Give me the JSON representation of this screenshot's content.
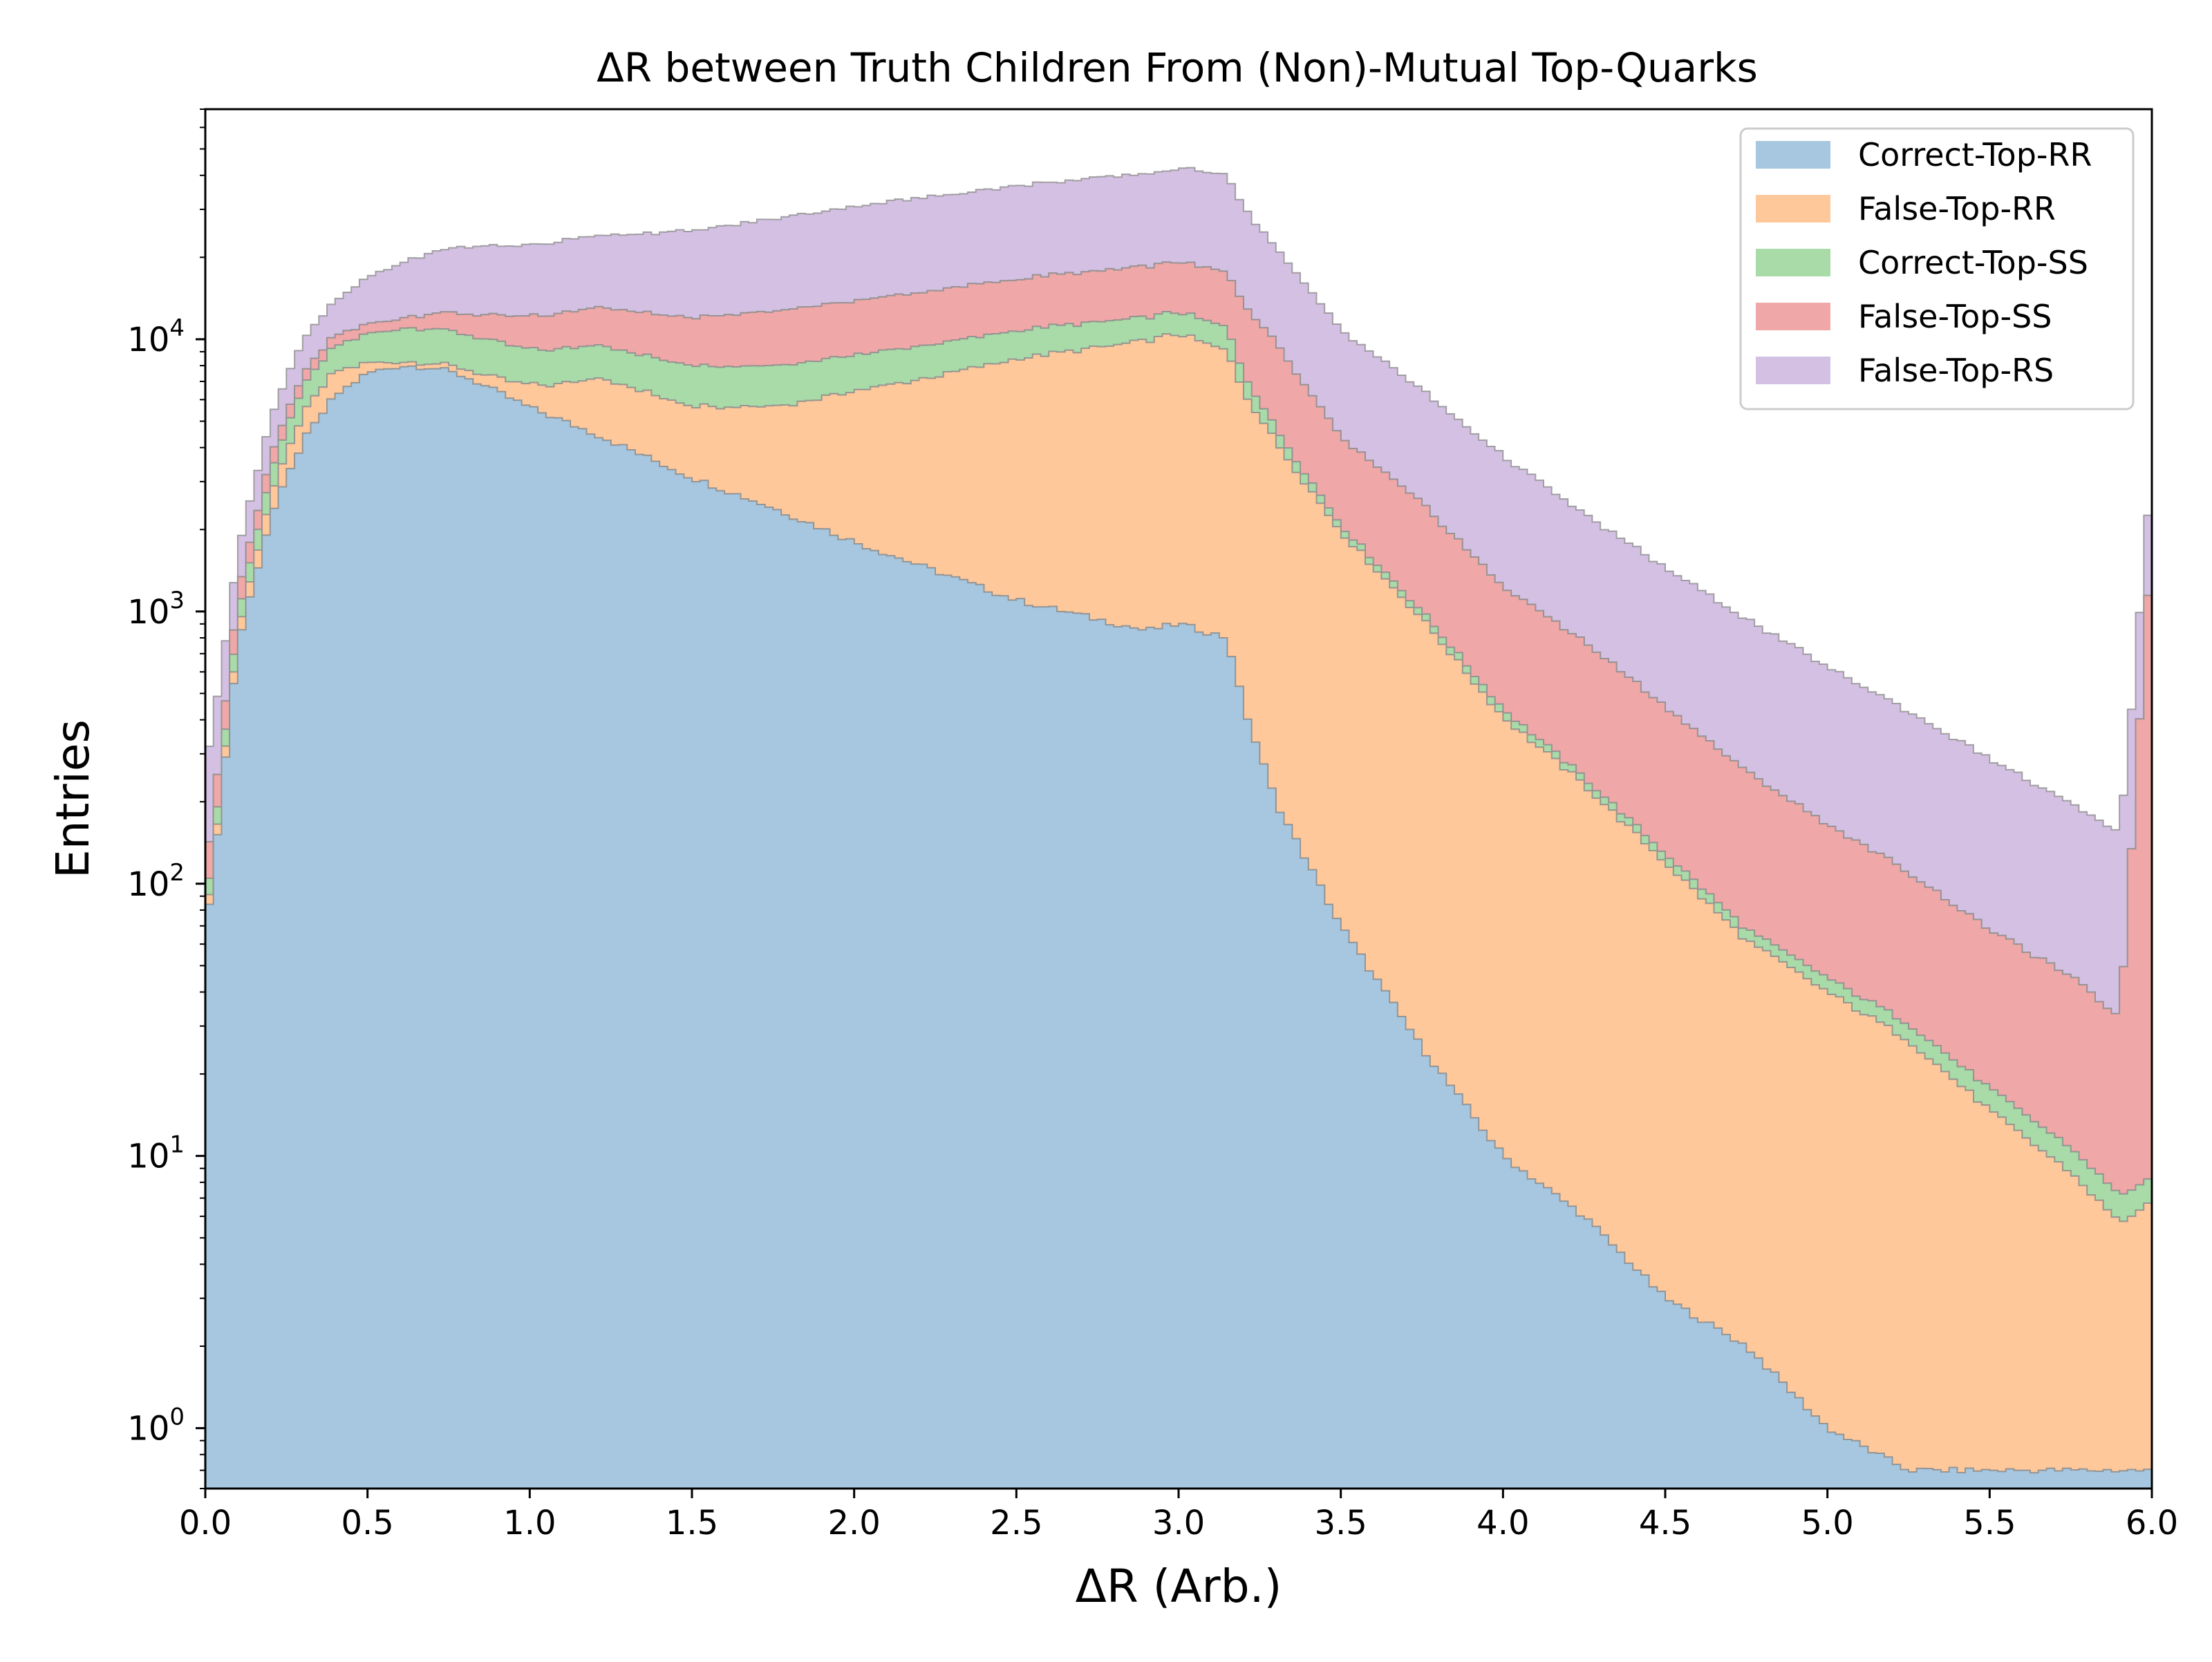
{
  "chart_data": {
    "type": "area",
    "title": "ΔR between Truth Children From (Non)-Mutual Top-Quarks",
    "xlabel": "ΔR (Arb.)",
    "ylabel": "Entries",
    "xlim": [
      0.0,
      6.0
    ],
    "ylim": [
      0.6,
      70000
    ],
    "yscale": "log",
    "stacked": true,
    "histogram_step": true,
    "legend_position": "top-right",
    "grid": false,
    "xticks": [
      "0.0",
      "0.5",
      "1.0",
      "1.5",
      "2.0",
      "2.5",
      "3.0",
      "3.5",
      "4.0",
      "4.5",
      "5.0",
      "5.5",
      "6.0"
    ],
    "yticks": [
      {
        "value": 1,
        "base": "10",
        "exp": "0"
      },
      {
        "value": 10,
        "base": "10",
        "exp": "1"
      },
      {
        "value": 100,
        "base": "10",
        "exp": "2"
      },
      {
        "value": 1000,
        "base": "10",
        "exp": "3"
      },
      {
        "value": 10000,
        "base": "10",
        "exp": "4"
      }
    ],
    "x": [
      0.0,
      0.1,
      0.2,
      0.3,
      0.4,
      0.5,
      0.6,
      0.7,
      0.8,
      1.0,
      1.2,
      1.5,
      1.75,
      2.0,
      2.5,
      2.9,
      3.0,
      3.15,
      3.2,
      3.3,
      3.5,
      3.75,
      4.0,
      4.25,
      4.5,
      4.75,
      5.0,
      5.25,
      5.5,
      5.75,
      5.9,
      6.0
    ],
    "series": [
      {
        "name": "Correct-Top-RR",
        "color": "#a6c7df",
        "values": [
          60,
          750,
          2200,
          4200,
          6200,
          7500,
          8000,
          7900,
          7300,
          5600,
          4500,
          3100,
          2400,
          1800,
          1100,
          850,
          900,
          800,
          450,
          200,
          70,
          25,
          10,
          6,
          3,
          2,
          1,
          0.7,
          0.7,
          0.7,
          0.7,
          0.7
        ]
      },
      {
        "name": "False-Top-RR",
        "color": "#ffc89b",
        "values": [
          5,
          80,
          450,
          1100,
          1500,
          700,
          300,
          300,
          500,
          1200,
          2800,
          2600,
          3300,
          4700,
          7400,
          9000,
          9600,
          8200,
          6000,
          4000,
          1900,
          920,
          400,
          225,
          117,
          60,
          39,
          26,
          14,
          8,
          5,
          6
        ]
      },
      {
        "name": "Correct-Top-SS",
        "color": "#a8dba8",
        "values": [
          10,
          130,
          550,
          1400,
          1800,
          2300,
          2700,
          2800,
          2700,
          2400,
          2300,
          2300,
          2300,
          2300,
          2300,
          2200,
          2100,
          2000,
          1050,
          500,
          110,
          55,
          28,
          14,
          9,
          6,
          5,
          4,
          3,
          2,
          1.5,
          1.5
        ]
      },
      {
        "name": "False-Top-SS",
        "color": "#f0a7a7",
        "values": [
          30,
          200,
          500,
          700,
          900,
          900,
          1000,
          1500,
          2000,
          3000,
          3600,
          4000,
          4700,
          5100,
          5900,
          6500,
          6700,
          6500,
          6000,
          5000,
          2300,
          1500,
          800,
          530,
          320,
          190,
          120,
          80,
          50,
          35,
          25,
          2000
        ]
      },
      {
        "name": "False-Top-RS",
        "color": "#d4c0e3",
        "values": [
          150,
          500,
          1400,
          2500,
          3500,
          5500,
          7000,
          8500,
          9500,
          10000,
          11000,
          13000,
          15000,
          17000,
          20000,
          22000,
          23000,
          23000,
          17000,
          12000,
          6500,
          4000,
          2500,
          1500,
          1000,
          680,
          460,
          320,
          220,
          150,
          120,
          1500
        ]
      }
    ]
  }
}
